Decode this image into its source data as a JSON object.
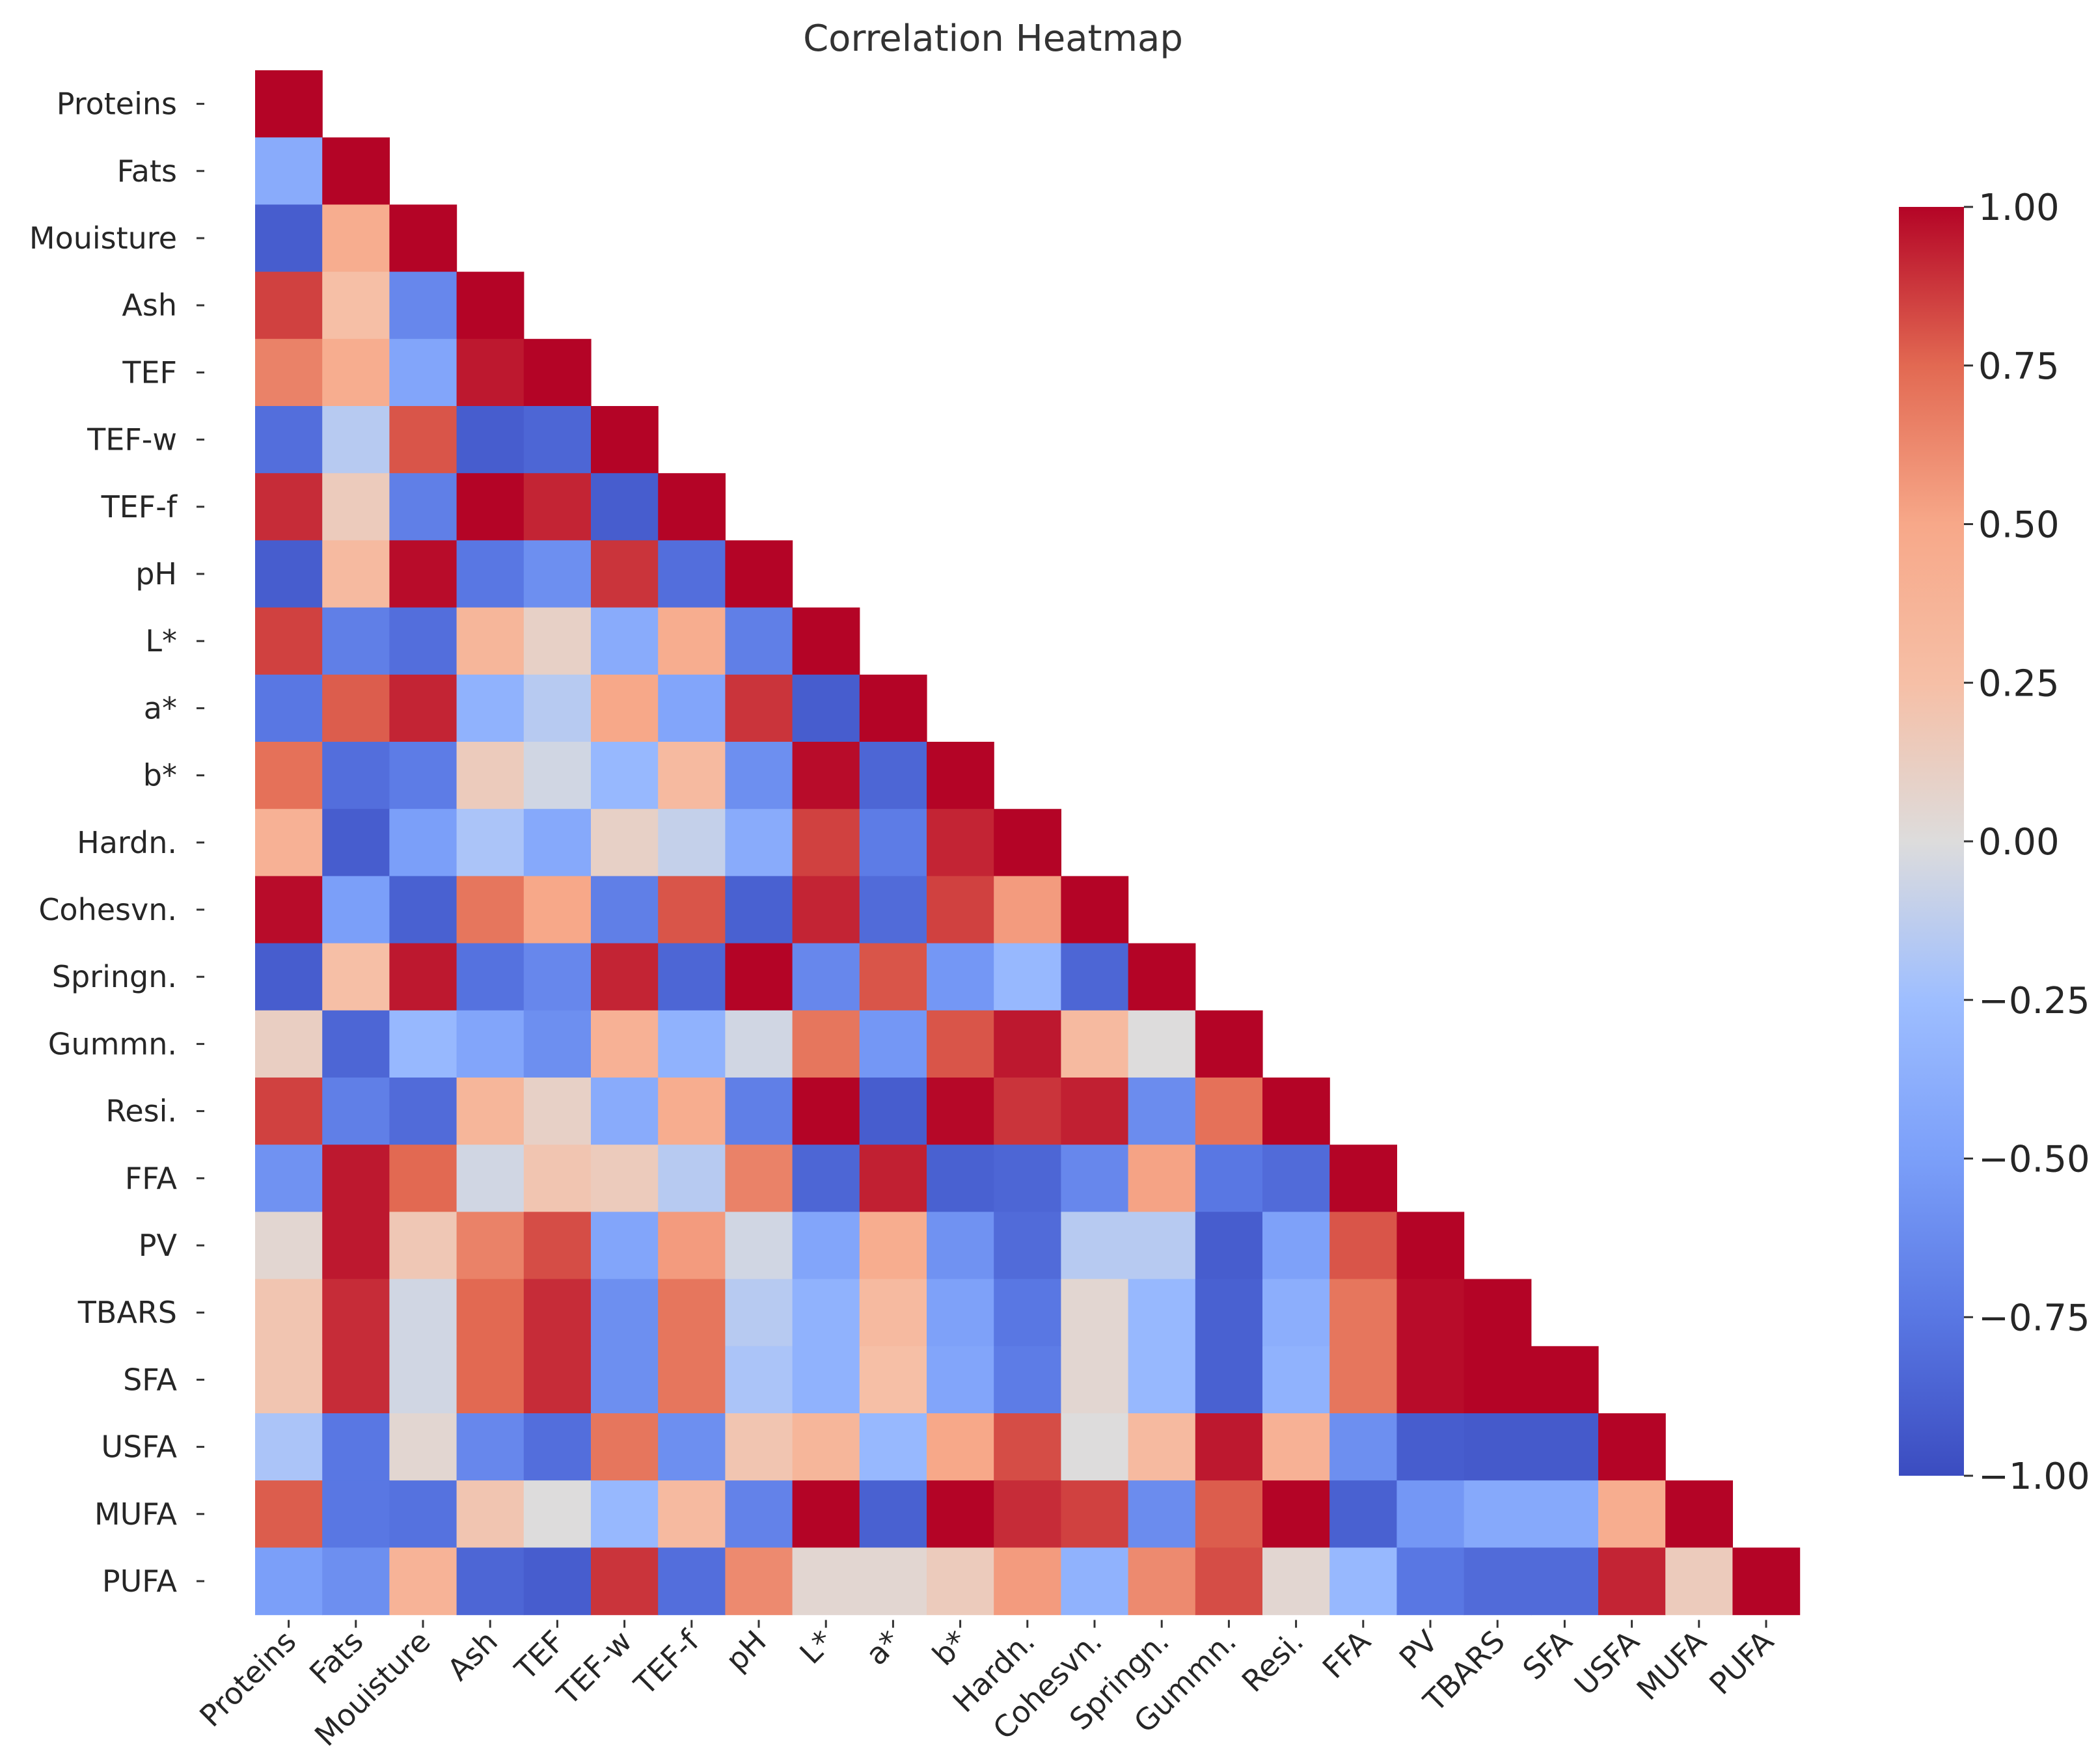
{
  "chart_data": {
    "type": "heatmap",
    "title": "Correlation Heatmap",
    "mask": "upper-triangle",
    "colormap": "coolwarm",
    "vmin": -1.0,
    "vmax": 1.0,
    "labels": [
      "Proteins",
      "Fats",
      "Mouisture",
      "Ash",
      "TEF",
      "TEF-w",
      "TEF-f",
      "pH",
      "L*",
      "a*",
      "b*",
      "Hardn.",
      "Cohesvn.",
      "Springn.",
      "Gummn.",
      "Resi.",
      "FFA",
      "PV",
      "TBARS",
      "SFA",
      "USFA",
      "MUFA",
      "PUFA"
    ],
    "matrix": [
      [
        1.0
      ],
      [
        -0.4,
        1.0
      ],
      [
        -0.9,
        0.45,
        1.0
      ],
      [
        0.85,
        0.25,
        -0.65,
        1.0
      ],
      [
        0.65,
        0.45,
        -0.45,
        0.95,
        1.0
      ],
      [
        -0.8,
        -0.15,
        0.8,
        -0.9,
        -0.85,
        1.0
      ],
      [
        0.9,
        0.15,
        -0.7,
        1.0,
        0.92,
        -0.9,
        1.0
      ],
      [
        -0.9,
        0.3,
        0.98,
        -0.75,
        -0.6,
        0.88,
        -0.8,
        1.0
      ],
      [
        0.85,
        -0.7,
        -0.8,
        0.35,
        0.1,
        -0.4,
        0.45,
        -0.7,
        1.0
      ],
      [
        -0.75,
        0.78,
        0.92,
        -0.35,
        -0.15,
        0.5,
        -0.45,
        0.88,
        -0.9,
        1.0
      ],
      [
        0.72,
        -0.8,
        -0.72,
        0.15,
        -0.05,
        -0.3,
        0.3,
        -0.6,
        0.98,
        -0.85,
        1.0
      ],
      [
        0.4,
        -0.9,
        -0.5,
        -0.2,
        -0.42,
        0.1,
        -0.1,
        -0.4,
        0.85,
        -0.72,
        0.92,
        1.0
      ],
      [
        0.98,
        -0.5,
        -0.88,
        0.7,
        0.5,
        -0.7,
        0.8,
        -0.88,
        0.92,
        -0.82,
        0.85,
        0.55,
        1.0
      ],
      [
        -0.9,
        0.25,
        0.95,
        -0.78,
        -0.65,
        0.92,
        -0.85,
        1.0,
        -0.65,
        0.8,
        -0.55,
        -0.3,
        -0.85,
        1.0
      ],
      [
        0.12,
        -0.85,
        -0.3,
        -0.45,
        -0.6,
        0.4,
        -0.35,
        -0.05,
        0.7,
        -0.55,
        0.8,
        0.95,
        0.3,
        0.0,
        1.0
      ],
      [
        0.85,
        -0.7,
        -0.82,
        0.35,
        0.1,
        -0.4,
        0.45,
        -0.7,
        1.0,
        -0.9,
        0.99,
        0.88,
        0.93,
        -0.62,
        0.72,
        1.0
      ],
      [
        -0.58,
        0.95,
        0.75,
        -0.05,
        0.2,
        0.15,
        -0.15,
        0.65,
        -0.85,
        0.93,
        -0.88,
        -0.85,
        -0.65,
        0.52,
        -0.75,
        -0.82,
        1.0
      ],
      [
        0.05,
        0.95,
        0.18,
        0.65,
        0.82,
        -0.45,
        0.55,
        -0.05,
        -0.45,
        0.45,
        -0.58,
        -0.82,
        -0.15,
        -0.15,
        -0.9,
        -0.48,
        0.8,
        1.0
      ],
      [
        0.2,
        0.9,
        -0.05,
        0.75,
        0.9,
        -0.6,
        0.7,
        -0.15,
        -0.35,
        0.3,
        -0.48,
        -0.75,
        0.05,
        -0.3,
        -0.88,
        -0.38,
        0.7,
        0.98,
        1.0
      ],
      [
        0.2,
        0.9,
        -0.05,
        0.75,
        0.9,
        -0.6,
        0.7,
        -0.2,
        -0.35,
        0.25,
        -0.45,
        -0.72,
        0.05,
        -0.3,
        -0.88,
        -0.35,
        0.7,
        0.98,
        1.0,
        1.0
      ],
      [
        -0.2,
        -0.75,
        0.05,
        -0.65,
        -0.8,
        0.7,
        -0.6,
        0.2,
        0.35,
        -0.3,
        0.5,
        0.82,
        0.0,
        0.3,
        0.95,
        0.4,
        -0.6,
        -0.9,
        -0.92,
        -0.92,
        1.0
      ],
      [
        0.78,
        -0.75,
        -0.78,
        0.2,
        0.0,
        -0.3,
        0.3,
        -0.68,
        1.0,
        -0.88,
        1.0,
        0.9,
        0.85,
        -0.62,
        0.78,
        1.0,
        -0.88,
        -0.55,
        -0.42,
        -0.42,
        0.45,
        1.0
      ],
      [
        -0.5,
        -0.6,
        0.38,
        -0.85,
        -0.9,
        0.88,
        -0.8,
        0.62,
        0.05,
        0.05,
        0.15,
        0.55,
        -0.35,
        0.62,
        0.82,
        0.05,
        -0.3,
        -0.75,
        -0.82,
        -0.82,
        0.92,
        0.15,
        1.0
      ]
    ],
    "colorbar": {
      "ticks": [
        1.0,
        0.75,
        0.5,
        0.25,
        0.0,
        -0.25,
        -0.5,
        -0.75,
        -1.0
      ],
      "tick_labels": [
        "1.00",
        "0.75",
        "0.50",
        "0.25",
        "0.00",
        "−0.25",
        "−0.50",
        "−0.75",
        "−1.00"
      ]
    }
  }
}
